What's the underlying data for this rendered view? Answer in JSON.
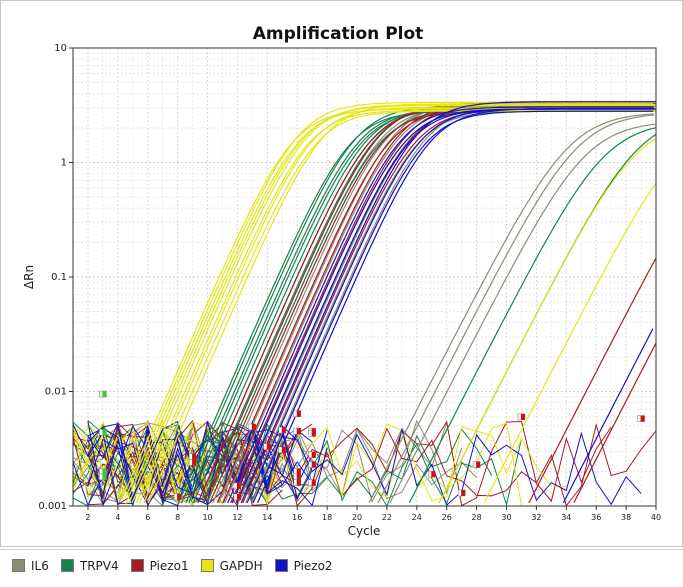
{
  "chart_data": {
    "type": "line",
    "title": "Amplification Plot",
    "xlabel": "Cycle",
    "ylabel": "ΔRn",
    "xlim": [
      1,
      40
    ],
    "ylim": [
      0.001,
      10
    ],
    "yscale": "log",
    "grid": true,
    "legend_position": "bottom",
    "x_ticks": [
      2,
      4,
      6,
      8,
      10,
      12,
      14,
      16,
      18,
      20,
      22,
      24,
      26,
      28,
      30,
      32,
      34,
      36,
      38,
      40
    ],
    "y_ticks": [
      0.001,
      0.01,
      0.1,
      1,
      10
    ],
    "y_tick_labels": [
      "0.001",
      "0.01",
      "0.1",
      "1",
      "10"
    ],
    "series": [
      {
        "name": "IL6",
        "color": "#8c8c76",
        "ct": [
          14.2,
          14.6,
          15.0,
          15.4,
          15.9,
          16.3,
          16.8,
          17.2,
          25.8,
          26.4,
          27.2
        ]
      },
      {
        "name": "TRPV4",
        "color": "#15844c",
        "ct": [
          12.3,
          12.5,
          12.8,
          13.0,
          13.3,
          13.6,
          13.9,
          14.2,
          28.5,
          30.5
        ]
      },
      {
        "name": "Piezo1",
        "color": "#a51d24",
        "ct": [
          13.6,
          14.0,
          14.4,
          14.9,
          15.3,
          15.8,
          16.2,
          16.6,
          36.5,
          39.5
        ]
      },
      {
        "name": "GAPDH",
        "color": "#e6e617",
        "ct": [
          8.4,
          8.6,
          8.8,
          9.0,
          9.2,
          9.5,
          9.7,
          10.0,
          10.3,
          30.5,
          33.5
        ]
      },
      {
        "name": "Piezo2",
        "color": "#1212c8",
        "ct": [
          15.6,
          15.9,
          16.2,
          16.5,
          16.9,
          17.3,
          17.6,
          38.8
        ]
      }
    ],
    "markers": [
      {
        "x": 3,
        "y": 0.0095,
        "color": "#33cc33"
      },
      {
        "x": 3,
        "y": 0.0044,
        "color": "#33cc33"
      },
      {
        "x": 3,
        "y": 0.002,
        "color": "#33cc33"
      },
      {
        "x": 3,
        "y": 0.0018,
        "color": "#33cc33"
      },
      {
        "x": 8,
        "y": 0.0012,
        "color": "#d01010"
      },
      {
        "x": 9,
        "y": 0.0027,
        "color": "#d01010"
      },
      {
        "x": 9,
        "y": 0.0024,
        "color": "#d01010"
      },
      {
        "x": 12,
        "y": 0.0015,
        "color": "#d01010"
      },
      {
        "x": 12,
        "y": 0.0012,
        "color": "#d01010"
      },
      {
        "x": 13,
        "y": 0.0049,
        "color": "#d01010"
      },
      {
        "x": 14,
        "y": 0.0033,
        "color": "#d01010"
      },
      {
        "x": 15,
        "y": 0.0046,
        "color": "#d01010"
      },
      {
        "x": 15,
        "y": 0.0031,
        "color": "#d01010"
      },
      {
        "x": 16,
        "y": 0.0064,
        "color": "#d01010"
      },
      {
        "x": 16,
        "y": 0.0045,
        "color": "#d01010"
      },
      {
        "x": 16,
        "y": 0.002,
        "color": "#d01010"
      },
      {
        "x": 16,
        "y": 0.0018,
        "color": "#d01010"
      },
      {
        "x": 16,
        "y": 0.0016,
        "color": "#d01010"
      },
      {
        "x": 17,
        "y": 0.0045,
        "color": "#d01010"
      },
      {
        "x": 17,
        "y": 0.0043,
        "color": "#d01010"
      },
      {
        "x": 17,
        "y": 0.0028,
        "color": "#d01010"
      },
      {
        "x": 17,
        "y": 0.0023,
        "color": "#d01010"
      },
      {
        "x": 17,
        "y": 0.0016,
        "color": "#d01010"
      },
      {
        "x": 25,
        "y": 0.0019,
        "color": "#d01010"
      },
      {
        "x": 27,
        "y": 0.0013,
        "color": "#d01010"
      },
      {
        "x": 28,
        "y": 0.0023,
        "color": "#d01010"
      },
      {
        "x": 31,
        "y": 0.006,
        "color": "#d01010"
      },
      {
        "x": 39,
        "y": 0.0058,
        "color": "#d01010"
      }
    ]
  }
}
